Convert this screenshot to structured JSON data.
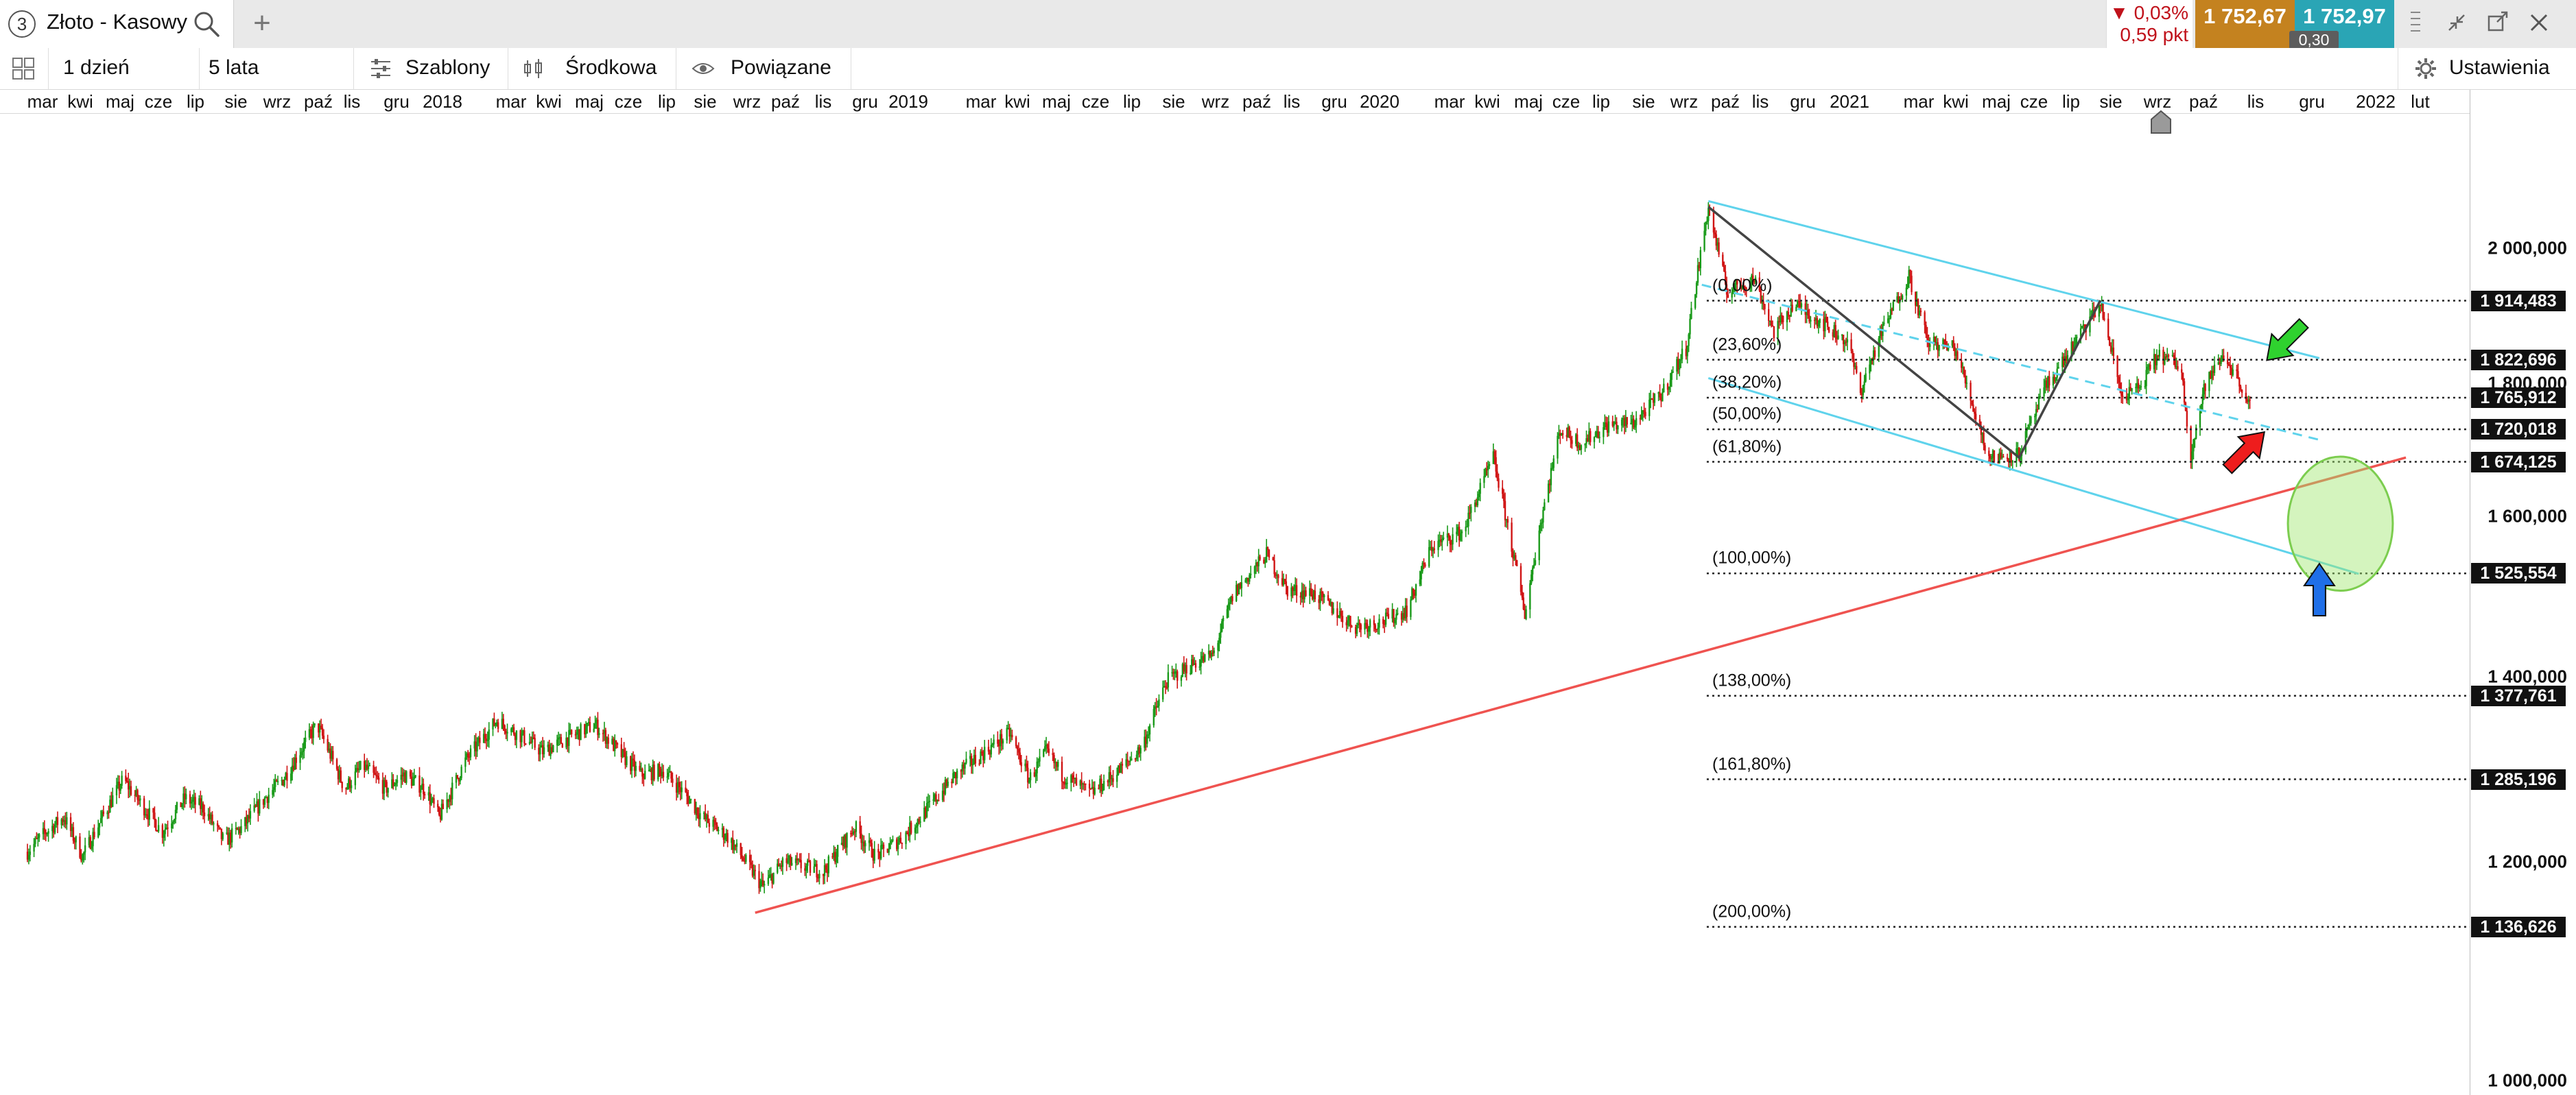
{
  "tab": {
    "number": "3",
    "title": "Złoto - Kasowy",
    "search_icon": "search-icon",
    "add_icon": "plus-icon"
  },
  "quote": {
    "change_pct": "▼ 0,03%",
    "change_pts": "0,59 pkt",
    "bid": "1 752,67",
    "ask": "1 752,97",
    "spread": "0,30"
  },
  "window_controls": [
    "menu-icon",
    "collapse-icon",
    "popout-icon",
    "close-icon"
  ],
  "toolbar": {
    "interval": "1 dzień",
    "range": "5 lata",
    "templates": "Szablony",
    "chart_type": "Środkowa",
    "related": "Powiązane",
    "settings": "Ustawienia"
  },
  "time_axis": {
    "labels": [
      {
        "t": "mar",
        "x": 62
      },
      {
        "t": "kwi",
        "x": 117
      },
      {
        "t": "maj",
        "x": 175
      },
      {
        "t": "cze",
        "x": 231
      },
      {
        "t": "lip",
        "x": 285
      },
      {
        "t": "sie",
        "x": 344
      },
      {
        "t": "wrz",
        "x": 404
      },
      {
        "t": "paź",
        "x": 464
      },
      {
        "t": "lis",
        "x": 513
      },
      {
        "t": "gru",
        "x": 578
      },
      {
        "t": "2018",
        "x": 645,
        "year": true
      },
      {
        "t": "mar",
        "x": 745
      },
      {
        "t": "kwi",
        "x": 800
      },
      {
        "t": "maj",
        "x": 859
      },
      {
        "t": "cze",
        "x": 916
      },
      {
        "t": "lip",
        "x": 972
      },
      {
        "t": "sie",
        "x": 1028
      },
      {
        "t": "wrz",
        "x": 1089
      },
      {
        "t": "paź",
        "x": 1145
      },
      {
        "t": "lis",
        "x": 1200
      },
      {
        "t": "gru",
        "x": 1261
      },
      {
        "t": "2019",
        "x": 1324,
        "year": true
      },
      {
        "t": "mar",
        "x": 1430
      },
      {
        "t": "kwi",
        "x": 1483
      },
      {
        "t": "maj",
        "x": 1540
      },
      {
        "t": "cze",
        "x": 1597
      },
      {
        "t": "lip",
        "x": 1650
      },
      {
        "t": "sie",
        "x": 1711
      },
      {
        "t": "wrz",
        "x": 1772
      },
      {
        "t": "paź",
        "x": 1832
      },
      {
        "t": "lis",
        "x": 1883
      },
      {
        "t": "gru",
        "x": 1945
      },
      {
        "t": "2020",
        "x": 2011,
        "year": true
      },
      {
        "t": "mar",
        "x": 2113
      },
      {
        "t": "kwi",
        "x": 2168
      },
      {
        "t": "maj",
        "x": 2228
      },
      {
        "t": "cze",
        "x": 2283
      },
      {
        "t": "lip",
        "x": 2334
      },
      {
        "t": "sie",
        "x": 2396
      },
      {
        "t": "wrz",
        "x": 2455
      },
      {
        "t": "paź",
        "x": 2515
      },
      {
        "t": "lis",
        "x": 2566
      },
      {
        "t": "gru",
        "x": 2628
      },
      {
        "t": "2021",
        "x": 2696,
        "year": true
      },
      {
        "t": "mar",
        "x": 2797
      },
      {
        "t": "kwi",
        "x": 2851
      },
      {
        "t": "maj",
        "x": 2910
      },
      {
        "t": "cze",
        "x": 2965
      },
      {
        "t": "lip",
        "x": 3019
      },
      {
        "t": "sie",
        "x": 3077
      },
      {
        "t": "wrz",
        "x": 3145
      },
      {
        "t": "paź",
        "x": 3212
      },
      {
        "t": "lis",
        "x": 3288
      },
      {
        "t": "gru",
        "x": 3370
      },
      {
        "t": "2022",
        "x": 3463,
        "year": true
      },
      {
        "t": "lut",
        "x": 3528
      }
    ]
  },
  "price_axis": {
    "ticks": [
      "2 000,000",
      "1 800,000",
      "1 600,000",
      "1 400,000",
      "1 200,000",
      "1 000,000"
    ],
    "levels": [
      "1 914,483",
      "1 822,696",
      "1 765,912",
      "1 720,018",
      "1 674,125",
      "1 525,554",
      "1 377,761",
      "1 285,196",
      "1 136,626"
    ]
  },
  "fibonacci": [
    "(0,00%)",
    "(23,60%)",
    "(38,20%)",
    "(50,00%)",
    "(61,80%)",
    "(100,00%)",
    "(138,00%)",
    "(161,80%)",
    "(200,00%)"
  ],
  "chart_data": {
    "type": "candlestick",
    "instrument": "Złoto - Kasowy",
    "interval": "1 dzień",
    "range": "5 lata",
    "y_scale": "log",
    "ylim": [
      1000,
      2150
    ],
    "x_range": [
      "2017-02",
      "2022-02"
    ],
    "colors": {
      "up": "#1a9a1a",
      "down": "#d01414",
      "channel": "#5fd3ec",
      "support": "#ef5350",
      "fib": "#222222",
      "zigzag": "#444444"
    },
    "series": [
      {
        "name": "close",
        "points": [
          [
            "2017-02-01",
            1210
          ],
          [
            "2017-02-15",
            1230
          ],
          [
            "2017-03-01",
            1245
          ],
          [
            "2017-03-15",
            1205
          ],
          [
            "2017-04-01",
            1250
          ],
          [
            "2017-04-15",
            1285
          ],
          [
            "2017-05-01",
            1255
          ],
          [
            "2017-05-15",
            1230
          ],
          [
            "2017-06-01",
            1265
          ],
          [
            "2017-06-15",
            1255
          ],
          [
            "2017-07-01",
            1220
          ],
          [
            "2017-07-15",
            1235
          ],
          [
            "2017-08-01",
            1265
          ],
          [
            "2017-08-15",
            1285
          ],
          [
            "2017-09-01",
            1325
          ],
          [
            "2017-09-10",
            1345
          ],
          [
            "2017-10-01",
            1275
          ],
          [
            "2017-10-15",
            1300
          ],
          [
            "2017-11-01",
            1275
          ],
          [
            "2017-11-15",
            1290
          ],
          [
            "2017-12-01",
            1275
          ],
          [
            "2017-12-12",
            1245
          ],
          [
            "2018-01-01",
            1305
          ],
          [
            "2018-01-25",
            1350
          ],
          [
            "2018-02-15",
            1330
          ],
          [
            "2018-03-01",
            1315
          ],
          [
            "2018-03-20",
            1330
          ],
          [
            "2018-04-10",
            1345
          ],
          [
            "2018-05-01",
            1310
          ],
          [
            "2018-05-15",
            1290
          ],
          [
            "2018-06-01",
            1295
          ],
          [
            "2018-06-20",
            1265
          ],
          [
            "2018-07-01",
            1245
          ],
          [
            "2018-07-20",
            1225
          ],
          [
            "2018-08-16",
            1175
          ],
          [
            "2018-09-01",
            1200
          ],
          [
            "2018-10-01",
            1190
          ],
          [
            "2018-10-25",
            1235
          ],
          [
            "2018-11-10",
            1205
          ],
          [
            "2018-12-01",
            1225
          ],
          [
            "2018-12-20",
            1255
          ],
          [
            "2019-01-10",
            1290
          ],
          [
            "2019-02-01",
            1315
          ],
          [
            "2019-02-20",
            1335
          ],
          [
            "2019-03-07",
            1285
          ],
          [
            "2019-03-20",
            1315
          ],
          [
            "2019-04-01",
            1290
          ],
          [
            "2019-04-23",
            1270
          ],
          [
            "2019-05-15",
            1295
          ],
          [
            "2019-06-01",
            1320
          ],
          [
            "2019-06-20",
            1395
          ],
          [
            "2019-07-10",
            1415
          ],
          [
            "2019-07-25",
            1425
          ],
          [
            "2019-08-10",
            1500
          ],
          [
            "2019-09-04",
            1550
          ],
          [
            "2019-09-20",
            1505
          ],
          [
            "2019-10-10",
            1500
          ],
          [
            "2019-11-10",
            1460
          ],
          [
            "2019-12-01",
            1465
          ],
          [
            "2019-12-20",
            1480
          ],
          [
            "2020-01-08",
            1560
          ],
          [
            "2020-02-01",
            1580
          ],
          [
            "2020-02-24",
            1680
          ],
          [
            "2020-03-19",
            1475
          ],
          [
            "2020-04-01",
            1600
          ],
          [
            "2020-04-15",
            1720
          ],
          [
            "2020-05-01",
            1700
          ],
          [
            "2020-05-20",
            1725
          ],
          [
            "2020-06-10",
            1730
          ],
          [
            "2020-07-01",
            1770
          ],
          [
            "2020-07-20",
            1840
          ],
          [
            "2020-08-06",
            2070
          ],
          [
            "2020-08-20",
            1930
          ],
          [
            "2020-09-10",
            1950
          ],
          [
            "2020-09-25",
            1865
          ],
          [
            "2020-10-10",
            1910
          ],
          [
            "2020-11-01",
            1880
          ],
          [
            "2020-11-20",
            1850
          ],
          [
            "2020-11-30",
            1775
          ],
          [
            "2020-12-15",
            1860
          ],
          [
            "2021-01-06",
            1955
          ],
          [
            "2021-01-20",
            1850
          ],
          [
            "2021-02-10",
            1840
          ],
          [
            "2021-02-26",
            1740
          ],
          [
            "2021-03-08",
            1680
          ],
          [
            "2021-03-31",
            1685
          ],
          [
            "2021-04-20",
            1780
          ],
          [
            "2021-05-10",
            1840
          ],
          [
            "2021-06-01",
            1910
          ],
          [
            "2021-06-17",
            1770
          ],
          [
            "2021-07-01",
            1780
          ],
          [
            "2021-07-15",
            1830
          ],
          [
            "2021-08-01",
            1815
          ],
          [
            "2021-08-09",
            1685
          ],
          [
            "2021-08-20",
            1785
          ],
          [
            "2021-09-03",
            1830
          ],
          [
            "2021-09-15",
            1790
          ],
          [
            "2021-09-23",
            1752.67
          ]
        ]
      }
    ],
    "overlays": {
      "channel_upper": [
        [
          "2020-08-06",
          2080
        ],
        [
          "2021-11-15",
          1825
        ]
      ],
      "channel_mid_dashed": [
        [
          "2020-08-01",
          1940
        ],
        [
          "2021-11-15",
          1705
        ]
      ],
      "channel_lower": [
        [
          "2020-08-06",
          1795
        ],
        [
          "2021-12-15",
          1525
        ]
      ],
      "support_line": [
        [
          "2018-08-10",
          1150
        ],
        [
          "2022-01-20",
          1680
        ]
      ],
      "zigzag": [
        [
          "2020-08-06",
          2070
        ],
        [
          "2021-03-31",
          1680
        ],
        [
          "2021-06-01",
          1915
        ]
      ],
      "fib_levels": [
        1914.483,
        1822.696,
        1765.912,
        1720.018,
        1674.125,
        1525.554,
        1377.761,
        1285.196,
        1136.626
      ],
      "fib_start": "2020-08-10",
      "target_zone": {
        "center": [
          "2021-12-01",
          1590
        ],
        "r_days": 40,
        "r_price": 45
      },
      "arrows": [
        {
          "color": "#2fd22f",
          "dir": "down-left",
          "at": [
            "2021-10-20",
            1850
          ]
        },
        {
          "color": "#ee1d1d",
          "dir": "up-right",
          "at": [
            "2021-09-20",
            1690
          ]
        },
        {
          "color": "#1f6fe8",
          "dir": "up",
          "at": [
            "2021-11-15",
            1505
          ]
        }
      ]
    }
  }
}
